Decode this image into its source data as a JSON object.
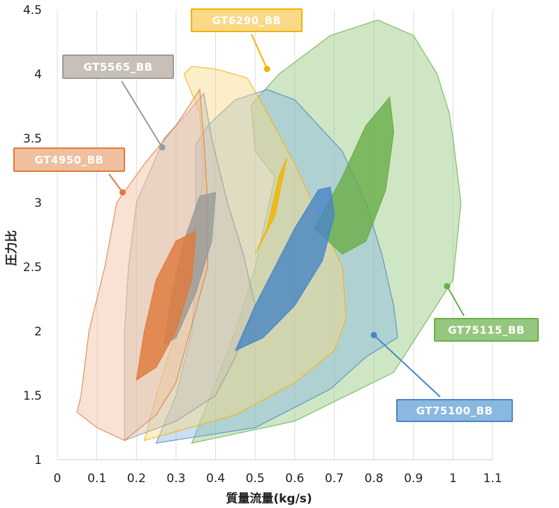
{
  "chart_data": {
    "type": "area",
    "xlabel": "質量流量(kg/s)",
    "ylabel": "圧力比",
    "xlim": [
      0,
      1.1
    ],
    "ylim": [
      1,
      4.5
    ],
    "xticks": [
      "0",
      "0.1",
      "0.2",
      "0.3",
      "0.4",
      "0.5",
      "0.6",
      "0.7",
      "0.8",
      "0.9",
      "1",
      "1.1"
    ],
    "yticks": [
      "1",
      "1.5",
      "2",
      "2.5",
      "3",
      "3.5",
      "4",
      "4.5"
    ],
    "grid": "vertical",
    "series": [
      {
        "name": "GT75115_BB",
        "color": "#6aaf4a",
        "fill": "#95c77e",
        "map_outline": [
          [
            0.34,
            1.13
          ],
          [
            0.6,
            1.3
          ],
          [
            0.85,
            1.68
          ],
          [
            1.0,
            2.4
          ],
          [
            1.02,
            3.0
          ],
          [
            1.0,
            3.5
          ],
          [
            0.99,
            3.7
          ],
          [
            0.96,
            4.0
          ],
          [
            0.9,
            4.3
          ],
          [
            0.81,
            4.42
          ],
          [
            0.69,
            4.3
          ],
          [
            0.56,
            4.0
          ],
          [
            0.49,
            3.76
          ],
          [
            0.5,
            3.4
          ],
          [
            0.55,
            3.2
          ],
          [
            0.5,
            2.5
          ],
          [
            0.45,
            2.0
          ],
          [
            0.4,
            1.6
          ],
          [
            0.34,
            1.13
          ]
        ],
        "efficiency_island": [
          [
            0.65,
            2.8
          ],
          [
            0.72,
            3.2
          ],
          [
            0.78,
            3.6
          ],
          [
            0.84,
            3.82
          ],
          [
            0.85,
            3.55
          ],
          [
            0.83,
            3.1
          ],
          [
            0.78,
            2.7
          ],
          [
            0.72,
            2.6
          ],
          [
            0.65,
            2.8
          ]
        ],
        "marker": [
          0.985,
          2.35
        ]
      },
      {
        "name": "GT75100_BB",
        "color": "#4a86c5",
        "fill": "#8ab8e0",
        "map_outline": [
          [
            0.25,
            1.13
          ],
          [
            0.5,
            1.25
          ],
          [
            0.69,
            1.55
          ],
          [
            0.78,
            1.8
          ],
          [
            0.86,
            1.95
          ],
          [
            0.85,
            2.2
          ],
          [
            0.82,
            2.6
          ],
          [
            0.78,
            3.0
          ],
          [
            0.72,
            3.4
          ],
          [
            0.6,
            3.8
          ],
          [
            0.53,
            3.88
          ],
          [
            0.45,
            3.8
          ],
          [
            0.38,
            3.6
          ],
          [
            0.35,
            3.45
          ],
          [
            0.35,
            3.0
          ],
          [
            0.35,
            2.5
          ],
          [
            0.34,
            2.0
          ],
          [
            0.3,
            1.5
          ],
          [
            0.25,
            1.13
          ]
        ],
        "efficiency_island": [
          [
            0.45,
            1.85
          ],
          [
            0.5,
            2.2
          ],
          [
            0.55,
            2.5
          ],
          [
            0.6,
            2.8
          ],
          [
            0.66,
            3.1
          ],
          [
            0.69,
            3.12
          ],
          [
            0.7,
            2.9
          ],
          [
            0.67,
            2.55
          ],
          [
            0.6,
            2.2
          ],
          [
            0.52,
            1.95
          ],
          [
            0.45,
            1.85
          ]
        ],
        "marker": [
          0.8,
          1.97
        ]
      },
      {
        "name": "GT6290_BB",
        "color": "#f0b400",
        "fill": "#f9d987",
        "map_outline": [
          [
            0.22,
            1.15
          ],
          [
            0.45,
            1.35
          ],
          [
            0.6,
            1.6
          ],
          [
            0.7,
            1.85
          ],
          [
            0.73,
            2.1
          ],
          [
            0.72,
            2.5
          ],
          [
            0.66,
            2.9
          ],
          [
            0.6,
            3.3
          ],
          [
            0.53,
            3.7
          ],
          [
            0.48,
            3.97
          ],
          [
            0.4,
            4.04
          ],
          [
            0.34,
            4.06
          ],
          [
            0.32,
            4.0
          ],
          [
            0.36,
            3.7
          ],
          [
            0.37,
            3.2
          ],
          [
            0.33,
            2.5
          ],
          [
            0.3,
            2.0
          ],
          [
            0.25,
            1.5
          ],
          [
            0.22,
            1.15
          ]
        ],
        "efficiency_island": [
          [
            0.5,
            2.6
          ],
          [
            0.55,
            2.9
          ],
          [
            0.57,
            3.2
          ],
          [
            0.58,
            3.35
          ],
          [
            0.56,
            3.2
          ],
          [
            0.53,
            2.8
          ],
          [
            0.5,
            2.6
          ]
        ],
        "marker": [
          0.53,
          4.04
        ]
      },
      {
        "name": "GT5565_BB",
        "color": "#9a9a9a",
        "fill": "#c8c0b8",
        "map_outline": [
          [
            0.17,
            1.15
          ],
          [
            0.3,
            1.3
          ],
          [
            0.4,
            1.5
          ],
          [
            0.45,
            1.8
          ],
          [
            0.5,
            2.2
          ],
          [
            0.47,
            2.6
          ],
          [
            0.43,
            3.0
          ],
          [
            0.39,
            3.5
          ],
          [
            0.37,
            3.85
          ],
          [
            0.33,
            3.7
          ],
          [
            0.27,
            3.5
          ],
          [
            0.2,
            3.0
          ],
          [
            0.18,
            2.5
          ],
          [
            0.17,
            2.0
          ],
          [
            0.17,
            1.5
          ],
          [
            0.17,
            1.15
          ]
        ],
        "efficiency_island": [
          [
            0.27,
            1.9
          ],
          [
            0.29,
            2.3
          ],
          [
            0.32,
            2.7
          ],
          [
            0.36,
            3.05
          ],
          [
            0.4,
            3.08
          ],
          [
            0.39,
            2.7
          ],
          [
            0.35,
            2.3
          ],
          [
            0.3,
            1.95
          ],
          [
            0.27,
            1.9
          ]
        ],
        "marker": [
          0.265,
          3.43
        ]
      },
      {
        "name": "GT4950_BB",
        "color": "#e07a3c",
        "fill": "#efbf9e",
        "map_outline": [
          [
            0.05,
            1.37
          ],
          [
            0.1,
            1.25
          ],
          [
            0.17,
            1.15
          ],
          [
            0.25,
            1.35
          ],
          [
            0.3,
            1.6
          ],
          [
            0.38,
            2.5
          ],
          [
            0.38,
            3.0
          ],
          [
            0.37,
            3.5
          ],
          [
            0.36,
            3.88
          ],
          [
            0.3,
            3.6
          ],
          [
            0.22,
            3.3
          ],
          [
            0.15,
            3.0
          ],
          [
            0.12,
            2.5
          ],
          [
            0.08,
            2.0
          ],
          [
            0.06,
            1.5
          ],
          [
            0.05,
            1.37
          ]
        ],
        "efficiency_island": [
          [
            0.2,
            1.62
          ],
          [
            0.22,
            2.0
          ],
          [
            0.25,
            2.4
          ],
          [
            0.3,
            2.7
          ],
          [
            0.35,
            2.78
          ],
          [
            0.34,
            2.4
          ],
          [
            0.3,
            2.0
          ],
          [
            0.25,
            1.72
          ],
          [
            0.2,
            1.62
          ]
        ],
        "marker": [
          0.165,
          3.08
        ]
      }
    ]
  }
}
